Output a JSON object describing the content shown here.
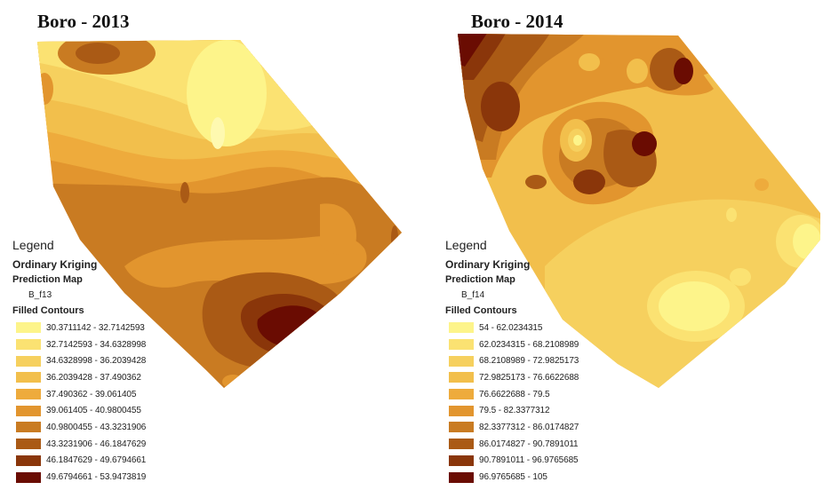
{
  "maps": [
    {
      "title": "Boro - 2013",
      "legend": {
        "heading": "Legend",
        "method": "Ordinary Kriging",
        "subheading": "Prediction Map",
        "field": "B_f13",
        "contours_title": "Filled Contours",
        "classes": [
          {
            "label": "30.3711142 - 32.7142593",
            "color": "#fdf48a"
          },
          {
            "label": "32.7142593 - 34.6328998",
            "color": "#fbe272"
          },
          {
            "label": "34.6328998 - 36.2039428",
            "color": "#f6d05e"
          },
          {
            "label": "36.2039428 - 37.490362",
            "color": "#f2bf4c"
          },
          {
            "label": "37.490362 - 39.061405",
            "color": "#eeab3c"
          },
          {
            "label": "39.061405 - 40.9800455",
            "color": "#e2952e"
          },
          {
            "label": "40.9800455 - 43.3231906",
            "color": "#c97b22"
          },
          {
            "label": "43.3231906 - 46.1847629",
            "color": "#aa5a15"
          },
          {
            "label": "46.1847629 - 49.6794661",
            "color": "#8a360a"
          },
          {
            "label": "49.6794661 - 53.9473819",
            "color": "#6a0c02"
          }
        ]
      }
    },
    {
      "title": "Boro - 2014",
      "legend": {
        "heading": "Legend",
        "method": "Ordinary Kriging",
        "subheading": "Prediction Map",
        "field": "B_f14",
        "contours_title": "Filled Contours",
        "classes": [
          {
            "label": "54 - 62.0234315",
            "color": "#fdf48a"
          },
          {
            "label": "62.0234315 - 68.2108989",
            "color": "#fbe272"
          },
          {
            "label": "68.2108989 - 72.9825173",
            "color": "#f6d05e"
          },
          {
            "label": "72.9825173 - 76.6622688",
            "color": "#f2bf4c"
          },
          {
            "label": "76.6622688 - 79.5",
            "color": "#eeab3c"
          },
          {
            "label": "79.5 - 82.3377312",
            "color": "#e2952e"
          },
          {
            "label": "82.3377312 - 86.0174827",
            "color": "#c97b22"
          },
          {
            "label": "86.0174827 - 90.7891011",
            "color": "#aa5a15"
          },
          {
            "label": "90.7891011 - 96.9765685",
            "color": "#8a360a"
          },
          {
            "label": "96.9765685 - 105",
            "color": "#6a0c02"
          }
        ]
      }
    }
  ]
}
